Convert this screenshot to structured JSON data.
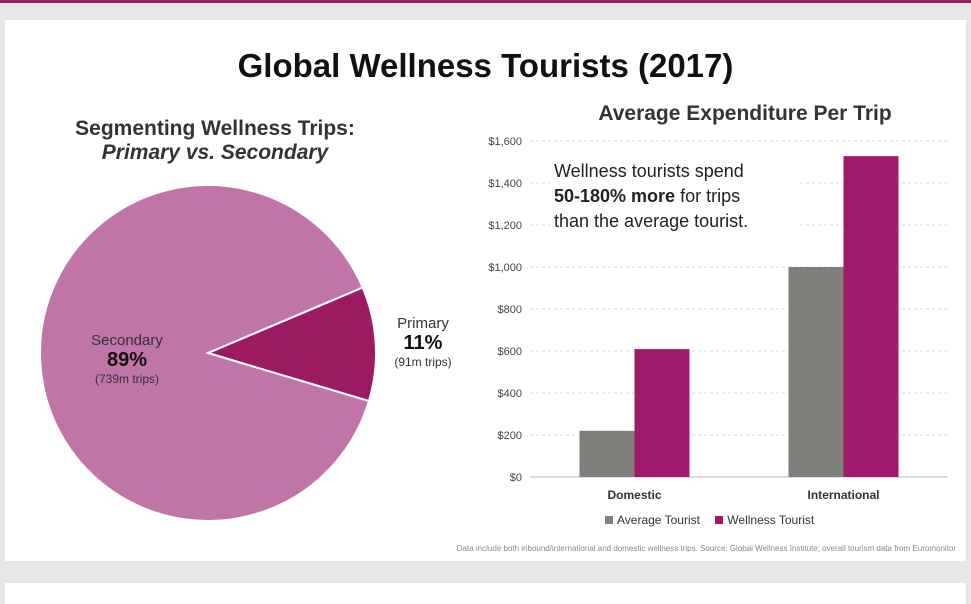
{
  "page": {
    "title": "Global Wellness Tourists (2017)",
    "footnote": "Data include both inbound/international and domestic wellness trips.   Source: Global Wellness Institute; overall tourism data from Euromonitor"
  },
  "callout": {
    "line1": "Wellness tourists spend",
    "bold": "50-180% more",
    "line2_rest": " for trips",
    "line3": "than the average tourist."
  },
  "colors": {
    "secondary": "#c174a6",
    "primary": "#9c1a62",
    "average": "#7e7e7a",
    "wellness": "#a0196b"
  },
  "chart_data": [
    {
      "type": "pie",
      "title": "Segmenting Wellness Trips:",
      "subtitle": "Primary vs. Secondary",
      "slices": [
        {
          "label": "Secondary",
          "percent_label": "89%",
          "trips_label": "(739m trips)",
          "value": 89
        },
        {
          "label": "Primary",
          "percent_label": "11%",
          "trips_label": "(91m trips)",
          "value": 11
        }
      ]
    },
    {
      "type": "bar",
      "title": "Average Expenditure Per Trip",
      "categories": [
        "Domestic",
        "International"
      ],
      "series": [
        {
          "name": "Average Tourist",
          "values": [
            220,
            1000
          ]
        },
        {
          "name": "Wellness Tourist",
          "values": [
            609,
            1528
          ]
        }
      ],
      "ylim": [
        0,
        1600
      ],
      "yticks": [
        "$0",
        "$200",
        "$400",
        "$600",
        "$800",
        "$1,000",
        "$1,200",
        "$1,400",
        "$1,600"
      ],
      "legend": "bottom",
      "grid": true
    }
  ]
}
